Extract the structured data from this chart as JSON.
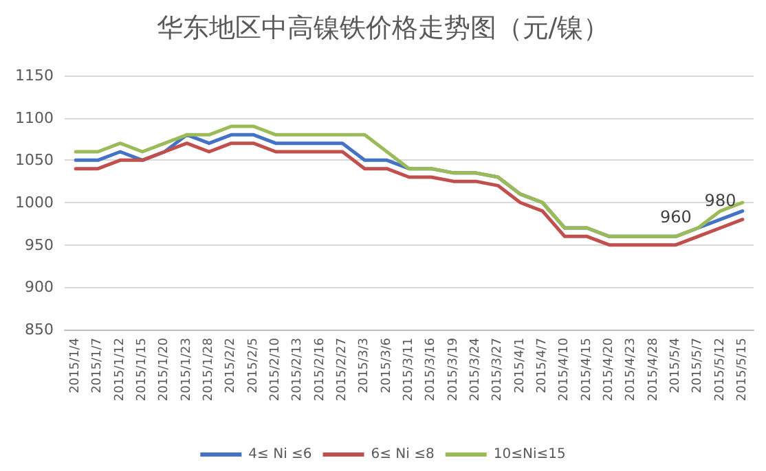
{
  "chart_data": {
    "type": "line",
    "title": "华东地区中高镍铁价格走势图（元/镍）",
    "categories": [
      "2015/1/4",
      "2015/1/7",
      "2015/1/12",
      "2015/1/15",
      "2015/1/20",
      "2015/1/23",
      "2015/1/28",
      "2015/2/2",
      "2015/2/5",
      "2015/2/10",
      "2015/2/13",
      "2015/2/16",
      "2015/2/27",
      "2015/3/3",
      "2015/3/6",
      "2015/3/11",
      "2015/3/16",
      "2015/3/19",
      "2015/3/24",
      "2015/3/27",
      "2015/4/1",
      "2015/4/7",
      "2015/4/10",
      "2015/4/15",
      "2015/4/20",
      "2015/4/23",
      "2015/4/28",
      "2015/5/4",
      "2015/5/7",
      "2015/5/12",
      "2015/5/15"
    ],
    "series": [
      {
        "name": "4≤ Ni ≤6",
        "color": "#4472c4",
        "values": [
          1050,
          1050,
          1060,
          1050,
          1060,
          1080,
          1070,
          1080,
          1080,
          1070,
          1070,
          1070,
          1070,
          1050,
          1050,
          1040,
          1040,
          1035,
          1035,
          1030,
          1010,
          1000,
          970,
          970,
          960,
          960,
          960,
          960,
          970,
          980,
          990
        ]
      },
      {
        "name": "6≤ Ni ≤8",
        "color": "#c0504d",
        "values": [
          1040,
          1040,
          1050,
          1050,
          1060,
          1070,
          1060,
          1070,
          1070,
          1060,
          1060,
          1060,
          1060,
          1040,
          1040,
          1030,
          1030,
          1025,
          1025,
          1020,
          1000,
          990,
          960,
          960,
          950,
          950,
          950,
          950,
          960,
          970,
          980
        ]
      },
      {
        "name": "10≤Ni≤15",
        "color": "#9bbb59",
        "values": [
          1060,
          1060,
          1070,
          1060,
          1070,
          1080,
          1080,
          1090,
          1090,
          1080,
          1080,
          1080,
          1080,
          1080,
          1060,
          1040,
          1040,
          1035,
          1035,
          1030,
          1010,
          1000,
          970,
          970,
          960,
          960,
          960,
          960,
          970,
          990,
          1000
        ]
      }
    ],
    "annotations": [
      {
        "text": "960",
        "x": "2015/5/4",
        "y": 960
      },
      {
        "text": "980",
        "x": "2015/5/12",
        "y": 980
      }
    ],
    "ylim": [
      850,
      1150
    ],
    "yticks": [
      850,
      900,
      950,
      1000,
      1050,
      1100,
      1150
    ],
    "grid": "y",
    "legend": "bottom",
    "marker": "none",
    "line_style": "solid"
  }
}
